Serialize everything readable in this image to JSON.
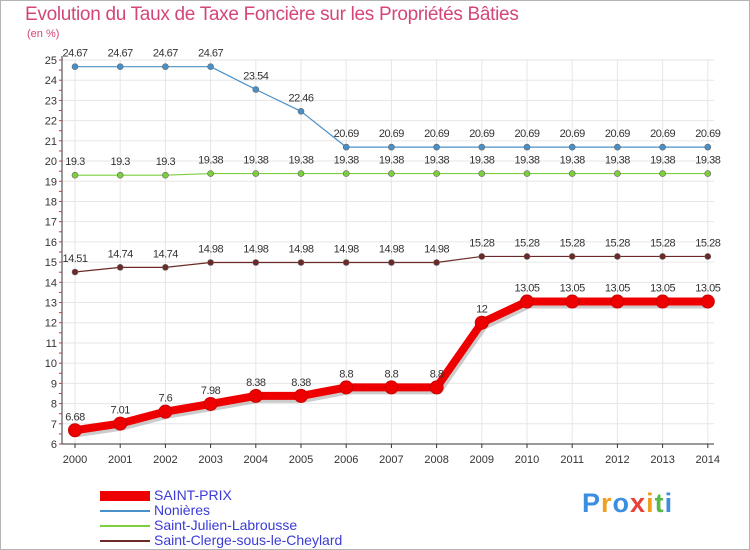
{
  "title": "Evolution du Taux de Taxe Foncière sur les Propriétés Bâties",
  "unit_label": "(en %)",
  "logo": {
    "text": "Proxiti",
    "letters": [
      "P",
      "r",
      "o",
      "x",
      "i",
      "t",
      "i"
    ],
    "colors": [
      "#3b8ee0",
      "#f0a020",
      "#3b8ee0",
      "#e8413a",
      "#f0a020",
      "#58b848",
      "#3b8ee0"
    ]
  },
  "chart_data": {
    "type": "line",
    "title": "Evolution du Taux de Taxe Foncière sur les Propriétés Bâties",
    "ylabel": "(en %)",
    "xlabel": "",
    "ylim": [
      6,
      25
    ],
    "yticks": [
      6,
      7,
      8,
      9,
      10,
      11,
      12,
      13,
      14,
      15,
      16,
      17,
      18,
      19,
      20,
      21,
      22,
      23,
      24,
      25
    ],
    "categories": [
      "2000",
      "2001",
      "2002",
      "2003",
      "2004",
      "2005",
      "2006",
      "2007",
      "2008",
      "2009",
      "2010",
      "2011",
      "2012",
      "2013",
      "2014"
    ],
    "series": [
      {
        "name": "SAINT-PRIX",
        "color": "#ee0000",
        "legend_color": "#3b3bd6",
        "values": [
          6.68,
          7.01,
          7.6,
          7.98,
          8.38,
          8.38,
          8.8,
          8.8,
          8.8,
          12,
          13.05,
          13.05,
          13.05,
          13.05,
          13.05
        ],
        "labels": [
          "6.68",
          "7.01",
          "7.6",
          "7.98",
          "8.38",
          "8.38",
          "8.8",
          "8.8",
          "8.8",
          "12",
          "13.05",
          "13.05",
          "13.05",
          "13.05",
          "13.05"
        ]
      },
      {
        "name": "Nonières",
        "color": "#4a90c8",
        "legend_color": "#3b3bd6",
        "values": [
          24.67,
          24.67,
          24.67,
          24.67,
          23.54,
          22.46,
          20.69,
          20.69,
          20.69,
          20.69,
          20.69,
          20.69,
          20.69,
          20.69,
          20.69
        ],
        "labels": [
          "24.67",
          "24.67",
          "24.67",
          "24.67",
          "23.54",
          "22.46",
          "20.69",
          "20.69",
          "20.69",
          "20.69",
          "20.69",
          "20.69",
          "20.69",
          "20.69",
          "20.69"
        ]
      },
      {
        "name": "Saint-Julien-Labrousse",
        "color": "#7ecf3e",
        "legend_color": "#3b3bd6",
        "values": [
          19.3,
          19.3,
          19.3,
          19.38,
          19.38,
          19.38,
          19.38,
          19.38,
          19.38,
          19.38,
          19.38,
          19.38,
          19.38,
          19.38,
          19.38
        ],
        "labels": [
          "19.3",
          "19.3",
          "19.3",
          "19.38",
          "19.38",
          "19.38",
          "19.38",
          "19.38",
          "19.38",
          "19.38",
          "19.38",
          "19.38",
          "19.38",
          "19.38",
          "19.38"
        ]
      },
      {
        "name": "Saint-Clerge-sous-le-Cheylard",
        "color": "#6b2a28",
        "legend_color": "#3b3bd6",
        "values": [
          14.51,
          14.74,
          14.74,
          14.98,
          14.98,
          14.98,
          14.98,
          14.98,
          14.98,
          15.28,
          15.28,
          15.28,
          15.28,
          15.28,
          15.28
        ],
        "labels": [
          "14.51",
          "14.74",
          "14.74",
          "14.98",
          "14.98",
          "14.98",
          "14.98",
          "14.98",
          "14.98",
          "15.28",
          "15.28",
          "15.28",
          "15.28",
          "15.28",
          "15.28"
        ]
      }
    ]
  }
}
